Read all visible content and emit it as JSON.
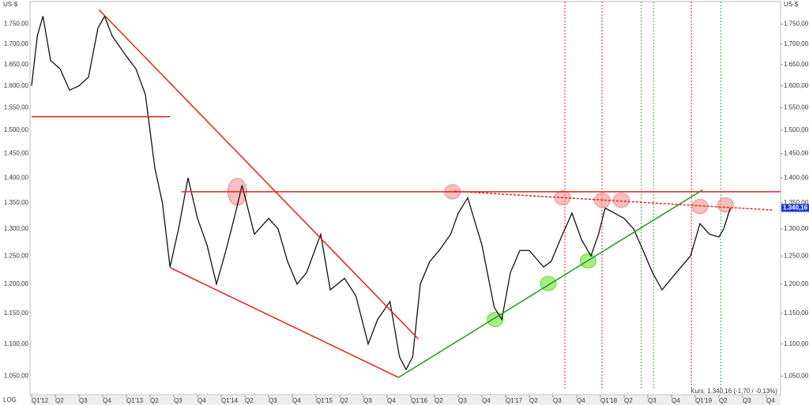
{
  "chart_data": {
    "type": "line",
    "unit": "US-$",
    "scale_note": "LOG",
    "log_scale": true,
    "annotation": "Kurs: 1.340,16 (-1,70 / -0,13%)",
    "last_label": "1.340,16",
    "last_value": 1340.16,
    "xlim": [
      2012,
      2019.9
    ],
    "ylim": [
      1022,
      1808
    ],
    "xticks": [
      {
        "value": 2012,
        "label": "Q1'12"
      },
      {
        "value": 2012.25,
        "label": "Q2"
      },
      {
        "value": 2012.5,
        "label": "Q3"
      },
      {
        "value": 2012.75,
        "label": "Q4"
      },
      {
        "value": 2013,
        "label": "Q1'13"
      },
      {
        "value": 2013.25,
        "label": "Q2"
      },
      {
        "value": 2013.5,
        "label": "Q3"
      },
      {
        "value": 2013.75,
        "label": "Q4"
      },
      {
        "value": 2014,
        "label": "Q1'14"
      },
      {
        "value": 2014.25,
        "label": "Q2"
      },
      {
        "value": 2014.5,
        "label": "Q3"
      },
      {
        "value": 2014.75,
        "label": "Q4"
      },
      {
        "value": 2015,
        "label": "Q1'15"
      },
      {
        "value": 2015.25,
        "label": "Q2"
      },
      {
        "value": 2015.5,
        "label": "Q3"
      },
      {
        "value": 2015.75,
        "label": "Q4"
      },
      {
        "value": 2016,
        "label": "Q1'16"
      },
      {
        "value": 2016.25,
        "label": "Q2"
      },
      {
        "value": 2016.5,
        "label": "Q3"
      },
      {
        "value": 2016.75,
        "label": "Q4"
      },
      {
        "value": 2017,
        "label": "Q1'17"
      },
      {
        "value": 2017.25,
        "label": "Q2"
      },
      {
        "value": 2017.5,
        "label": "Q3"
      },
      {
        "value": 2017.75,
        "label": "Q4"
      },
      {
        "value": 2018,
        "label": "Q1'18"
      },
      {
        "value": 2018.25,
        "label": "Q2"
      },
      {
        "value": 2018.5,
        "label": "Q3"
      },
      {
        "value": 2018.75,
        "label": "Q4"
      },
      {
        "value": 2019,
        "label": "Q1'19"
      },
      {
        "value": 2019.25,
        "label": "Q2"
      },
      {
        "value": 2019.5,
        "label": "Q3"
      },
      {
        "value": 2019.75,
        "label": "Q4"
      }
    ],
    "yticks": [
      {
        "value": 1050,
        "label": "1.050,00"
      },
      {
        "value": 1100,
        "label": "1.100,00"
      },
      {
        "value": 1150,
        "label": "1.150,00"
      },
      {
        "value": 1200,
        "label": "1.200,00"
      },
      {
        "value": 1250,
        "label": "1.250,00"
      },
      {
        "value": 1300,
        "label": "1.300,00"
      },
      {
        "value": 1350,
        "label": "1.350,00"
      },
      {
        "value": 1400,
        "label": "1.400,00"
      },
      {
        "value": 1450,
        "label": "1.450,00"
      },
      {
        "value": 1500,
        "label": "1.500,00"
      },
      {
        "value": 1550,
        "label": "1.550,00"
      },
      {
        "value": 1600,
        "label": "1.600,00"
      },
      {
        "value": 1650,
        "label": "1.650,00"
      },
      {
        "value": 1700,
        "label": "1.700,00"
      },
      {
        "value": 1750,
        "label": "1.750,00"
      }
    ],
    "series": [
      {
        "color": "#111111",
        "x": [
          2012.0,
          2012.06,
          2012.12,
          2012.2,
          2012.3,
          2012.4,
          2012.5,
          2012.6,
          2012.7,
          2012.77,
          2012.85,
          2013.0,
          2013.1,
          2013.2,
          2013.3,
          2013.38,
          2013.46,
          2013.55,
          2013.65,
          2013.75,
          2013.85,
          2013.95,
          2014.05,
          2014.15,
          2014.22,
          2014.35,
          2014.5,
          2014.6,
          2014.7,
          2014.8,
          2014.9,
          2015.05,
          2015.15,
          2015.3,
          2015.42,
          2015.55,
          2015.65,
          2015.78,
          2015.88,
          2015.95,
          2016.02,
          2016.1,
          2016.2,
          2016.3,
          2016.42,
          2016.5,
          2016.6,
          2016.75,
          2016.88,
          2016.96,
          2017.05,
          2017.15,
          2017.25,
          2017.4,
          2017.48,
          2017.6,
          2017.7,
          2017.8,
          2017.9,
          2017.98,
          2018.05,
          2018.15,
          2018.25,
          2018.35,
          2018.45,
          2018.55,
          2018.65,
          2018.75,
          2018.85,
          2018.95,
          2019.05,
          2019.15,
          2019.25,
          2019.3,
          2019.37
        ],
        "values": [
          1600,
          1720,
          1770,
          1660,
          1640,
          1590,
          1600,
          1620,
          1740,
          1770,
          1720,
          1670,
          1640,
          1580,
          1420,
          1350,
          1230,
          1300,
          1400,
          1320,
          1270,
          1200,
          1260,
          1330,
          1385,
          1290,
          1320,
          1300,
          1240,
          1200,
          1220,
          1290,
          1190,
          1210,
          1180,
          1100,
          1140,
          1170,
          1080,
          1060,
          1080,
          1200,
          1240,
          1260,
          1290,
          1330,
          1360,
          1270,
          1160,
          1140,
          1220,
          1260,
          1260,
          1230,
          1240,
          1290,
          1330,
          1280,
          1250,
          1290,
          1340,
          1330,
          1320,
          1300,
          1260,
          1220,
          1190,
          1210,
          1230,
          1250,
          1310,
          1290,
          1285,
          1300,
          1340
        ]
      }
    ],
    "trendlines": [
      {
        "color": "#e8211a",
        "x": [
          2012,
          2013.46
        ],
        "y": [
          1530,
          1530
        ]
      },
      {
        "color": "#e8211a",
        "x": [
          2012.71,
          2016.08
        ],
        "y": [
          1787,
          1108
        ]
      },
      {
        "color": "#e8211a",
        "x": [
          2013.46,
          2015.87
        ],
        "y": [
          1229,
          1048
        ]
      },
      {
        "color": "#e8211a",
        "x": [
          2013.58,
          2019.9
        ],
        "y": [
          1372,
          1372
        ]
      },
      {
        "color": "#e8211a",
        "x": [
          2016.46,
          2019.83
        ],
        "y": [
          1373,
          1336
        ],
        "dashed": true
      },
      {
        "color": "#1d9a1d",
        "x": [
          2015.87,
          2019.08
        ],
        "y": [
          1048,
          1376
        ]
      }
    ],
    "vlines": [
      {
        "x": 2017.625,
        "color": "#e8211a"
      },
      {
        "x": 2018.017,
        "color": "#e8211a"
      },
      {
        "x": 2018.96,
        "color": "#e8211a"
      },
      {
        "x": 2018.43,
        "color": "#39b539"
      },
      {
        "x": 2018.56,
        "color": "#39b539"
      },
      {
        "x": 2019.27,
        "color": "#39b539"
      }
    ],
    "highlights": [
      {
        "x": 2014.17,
        "y": 1372,
        "color": "#f08a8a"
      },
      {
        "x": 2016.44,
        "y": 1372,
        "color": "#f08a8a"
      },
      {
        "x": 2017.6,
        "y": 1360,
        "color": "#f08a8a"
      },
      {
        "x": 2018.02,
        "y": 1355,
        "color": "#f08a8a"
      },
      {
        "x": 2018.22,
        "y": 1355,
        "color": "#f08a8a"
      },
      {
        "x": 2019.05,
        "y": 1343,
        "color": "#f08a8a"
      },
      {
        "x": 2019.32,
        "y": 1346,
        "color": "#f08a8a"
      },
      {
        "x": 2016.89,
        "y": 1140,
        "color": "#5be01f"
      },
      {
        "x": 2017.45,
        "y": 1201,
        "color": "#5be01f"
      },
      {
        "x": 2017.87,
        "y": 1241,
        "color": "#5be01f"
      }
    ]
  }
}
